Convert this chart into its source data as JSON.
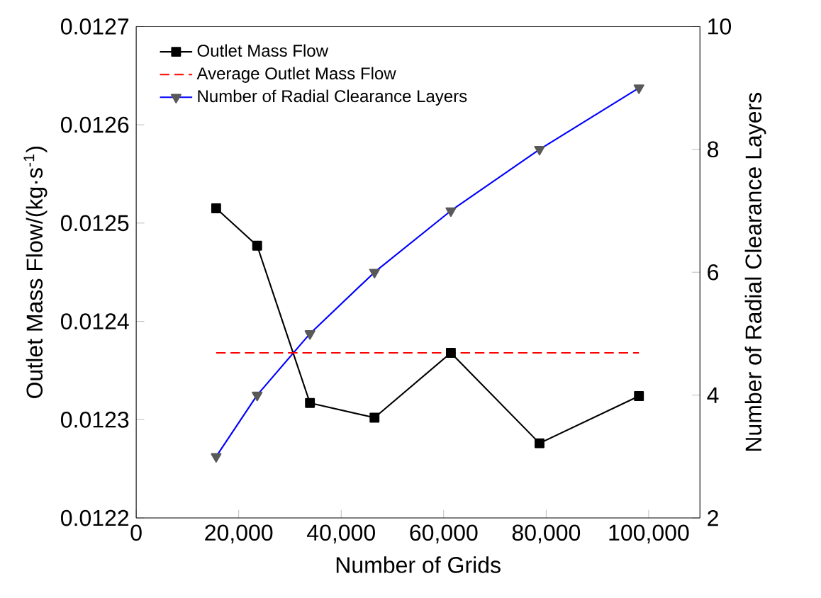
{
  "chart_data": {
    "type": "line",
    "xlabel": "Number of Grids",
    "ylabel": "Outlet Mass Flow/(kg·s$^{-1}$)",
    "y2label": "Number of Radial Clearance Layers",
    "x": [
      15600,
      23600,
      33900,
      46500,
      61400,
      78700,
      98100
    ],
    "series": [
      {
        "name": "Outlet Mass Flow",
        "color": "#000000",
        "marker": "square",
        "line_style": "solid",
        "values": [
          0.012515,
          0.012477,
          0.012317,
          0.012302,
          0.012368,
          0.012276,
          0.012324
        ]
      },
      {
        "name": "Average Outlet Mass Flow",
        "color": "#ff0000",
        "marker": "none",
        "line_style": "dashed",
        "x": [
          15600,
          98100
        ],
        "values": [
          0.012368,
          0.012368
        ]
      },
      {
        "name": "Number of Radial Clearance Layers",
        "color": "#0000ff",
        "marker": "triangle",
        "line_style": "solid",
        "axis": "y2",
        "values": [
          3,
          4,
          5,
          6,
          7,
          8,
          9
        ]
      }
    ],
    "xlim": [
      0,
      110000
    ],
    "xticks": [
      0,
      {
        "value": 20000,
        "label": "20,000"
      },
      {
        "value": 40000,
        "label": "40,000"
      },
      {
        "value": 60000,
        "label": "60,000"
      },
      {
        "value": 80000,
        "label": "80,000"
      },
      {
        "value": 100000,
        "label": "100,000"
      }
    ],
    "ylim": [
      0.0122,
      0.0127
    ],
    "yticks": [
      0.0122,
      0.0123,
      0.0124,
      0.0125,
      0.0126,
      0.0127
    ],
    "y2lim": [
      2,
      10
    ],
    "y2ticks": [
      2,
      4,
      6,
      8,
      10
    ],
    "legend": "top left",
    "grid": false
  }
}
